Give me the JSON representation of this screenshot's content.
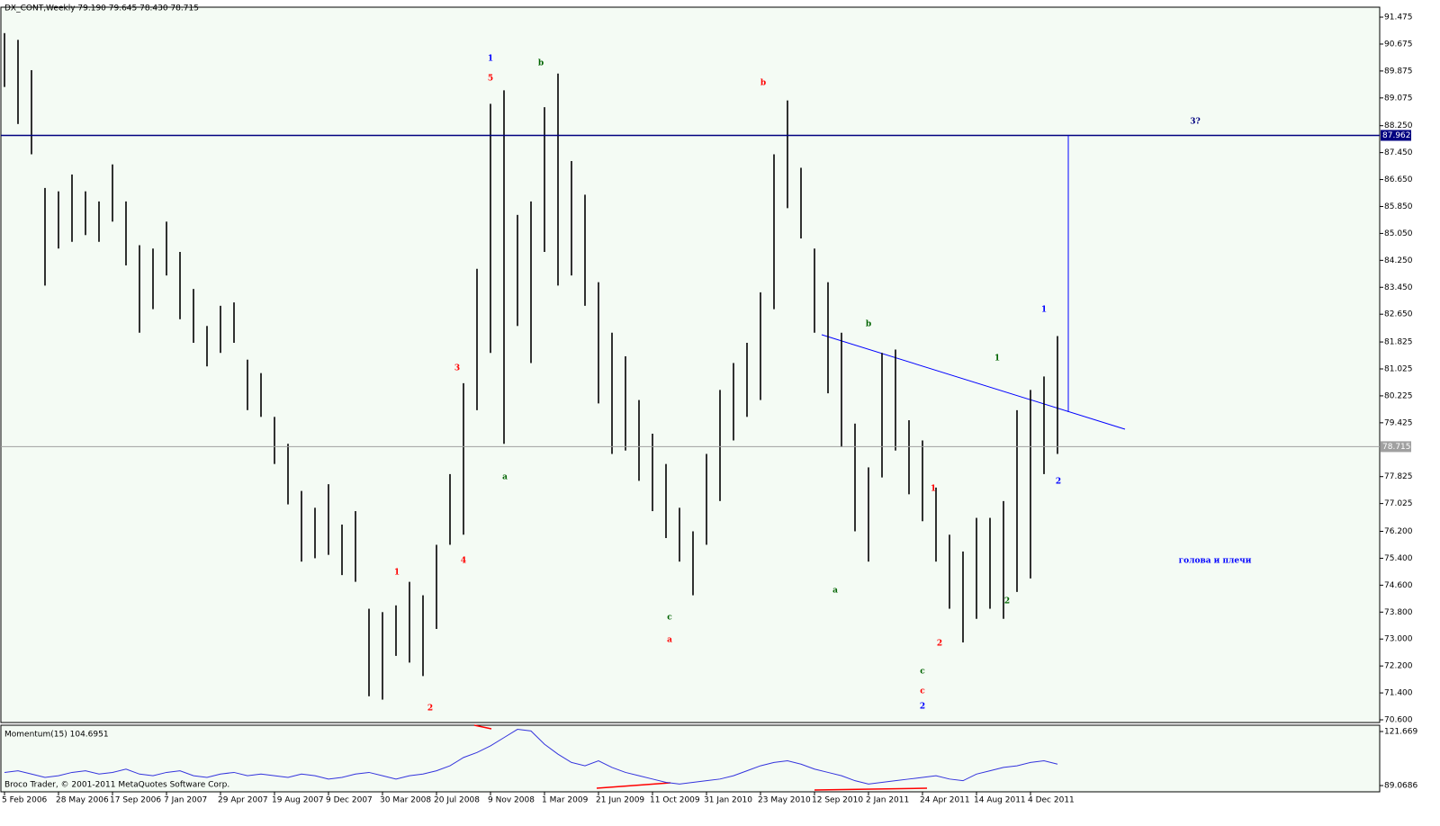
{
  "header": "DX_CONT,Weekly  79.190 79.645 78.430 78.715",
  "footer": "Broco Trader, © 2001-2011 MetaQuotes Software Corp.",
  "chart_data": {
    "type": "ohlc",
    "high": [
      91.0,
      90.8,
      89.9,
      86.4,
      86.3,
      86.8,
      86.3,
      86.0,
      87.1,
      86.0,
      84.7,
      84.6,
      85.4,
      84.5,
      83.4,
      82.3,
      82.9,
      83.0,
      81.3,
      80.9,
      79.6,
      78.8,
      77.4,
      76.9,
      77.6,
      76.4,
      76.8,
      73.9,
      73.8,
      74.0,
      74.7,
      74.3,
      75.8,
      77.9,
      80.6,
      84.0,
      88.9,
      89.3,
      85.6,
      86.0,
      88.8,
      89.8,
      87.2,
      86.2,
      83.6,
      82.1,
      81.4,
      80.1,
      79.1,
      78.2,
      76.9,
      76.2,
      78.5,
      80.4,
      81.2,
      81.8,
      83.3,
      87.4,
      89.0,
      87.0,
      84.6,
      83.6,
      82.1,
      79.4,
      78.1,
      81.5,
      81.6,
      79.5,
      78.9,
      77.5,
      76.1,
      75.6,
      76.6,
      76.6,
      77.1,
      79.8,
      80.4,
      80.8,
      82.0
    ],
    "low": [
      89.4,
      88.3,
      87.4,
      83.5,
      84.6,
      84.8,
      85.0,
      84.8,
      85.4,
      84.1,
      82.1,
      82.8,
      83.8,
      82.5,
      81.8,
      81.1,
      81.5,
      81.8,
      79.8,
      79.6,
      78.2,
      77.0,
      75.3,
      75.4,
      75.5,
      74.9,
      74.7,
      71.3,
      71.2,
      72.5,
      72.3,
      71.9,
      73.3,
      75.8,
      76.1,
      79.8,
      81.5,
      78.8,
      82.3,
      81.2,
      84.5,
      83.5,
      83.8,
      82.9,
      80.0,
      78.5,
      78.6,
      77.7,
      76.8,
      76.0,
      75.3,
      74.3,
      75.8,
      77.1,
      78.9,
      79.6,
      80.1,
      82.8,
      85.8,
      84.9,
      82.1,
      80.3,
      78.7,
      76.2,
      75.3,
      77.8,
      78.6,
      77.3,
      76.5,
      75.3,
      73.9,
      72.9,
      73.6,
      73.9,
      73.6,
      74.4,
      74.8,
      77.9,
      78.5
    ],
    "color": "#000000",
    "x_labels": [
      "5 Feb 2006",
      "28 May 2006",
      "17 Sep 2006",
      "7 Jan 2007",
      "29 Apr 2007",
      "19 Aug 2007",
      "9 Dec 2007",
      "30 Mar 2008",
      "20 Jul 2008",
      "9 Nov 2008",
      "1 Mar 2009",
      "21 Jun 2009",
      "11 Oct 2009",
      "31 Jan 2010",
      "23 May 2010",
      "12 Sep 2010",
      "2 Jan 2011",
      "24 Apr 2011",
      "14 Aug 2011",
      "4 Dec 2011"
    ],
    "ylim": [
      70.52,
      91.77
    ],
    "yticks": [
      91.475,
      90.675,
      89.875,
      89.075,
      {
        "value": 88.25,
        "label": "88.250"
      },
      {
        "value": 87.45,
        "label": "87.450"
      },
      {
        "value": 86.65,
        "label": "86.650"
      },
      {
        "value": 85.85,
        "label": "85.850"
      },
      {
        "value": 85.05,
        "label": "85.050"
      },
      {
        "value": 84.25,
        "label": "84.250"
      },
      {
        "value": 83.45,
        "label": "83.450"
      },
      {
        "value": 82.65,
        "label": "82.650"
      },
      81.825,
      81.025,
      80.225,
      79.425,
      77.825,
      77.025,
      {
        "value": 76.2,
        "label": "76.200"
      },
      {
        "value": 75.4,
        "label": "75.400"
      },
      {
        "value": 74.6,
        "label": "74.600"
      },
      {
        "value": 73.8,
        "label": "73.800"
      },
      {
        "value": 73,
        "label": "73.000"
      },
      {
        "value": 72.2,
        "label": "72.200"
      },
      {
        "value": 71.4,
        "label": "71.400"
      },
      {
        "value": 70.6,
        "label": "70.600"
      }
    ],
    "hlines": [
      {
        "value": 87.962,
        "color": "#000080"
      },
      {
        "value": 78.715,
        "color": "#a0a0a0"
      }
    ],
    "annotations": [
      {
        "text": "1",
        "color": "#0000ff"
      },
      {
        "text": "5",
        "color": "#ff0000"
      },
      {
        "text": "b",
        "color": "#006400"
      },
      {
        "text": "b",
        "color": "#ff0000"
      },
      {
        "text": "3?",
        "color": "#000080"
      },
      {
        "text": "3",
        "color": "#ff0000"
      },
      {
        "text": "a",
        "color": "#006400"
      },
      {
        "text": "1",
        "color": "#ff0000"
      },
      {
        "text": "4",
        "color": "#ff0000"
      },
      {
        "text": "2",
        "color": "#ff0000"
      },
      {
        "text": "c",
        "color": "#006400"
      },
      {
        "text": "a",
        "color": "#ff0000"
      },
      {
        "text": "b",
        "color": "#006400"
      },
      {
        "text": "a",
        "color": "#006400"
      },
      {
        "text": "1",
        "color": "#ff0000"
      },
      {
        "text": "2",
        "color": "#ff0000"
      },
      {
        "text": "c",
        "color": "#006400"
      },
      {
        "text": "c",
        "color": "#ff0000"
      },
      {
        "text": "2",
        "color": "#0000ff"
      },
      {
        "text": "1",
        "color": "#006400"
      },
      {
        "text": "2",
        "color": "#006400"
      },
      {
        "text": "1",
        "color": "#0000ff"
      },
      {
        "text": "2",
        "color": "#0000ff"
      },
      {
        "text": "голова и плечи",
        "color": "#0000ff"
      }
    ],
    "momentum": {
      "title": "Momentum(15) 104.6951",
      "color": "#3333dd",
      "values": [
        97,
        98,
        96,
        94,
        95,
        97,
        98,
        96,
        97,
        99,
        96,
        95,
        97,
        98,
        95,
        94,
        96,
        97,
        95,
        96,
        95,
        94,
        96,
        95,
        93,
        94,
        96,
        97,
        95,
        93,
        95,
        96,
        98,
        101,
        106,
        109,
        113,
        118,
        123,
        122,
        114,
        108,
        103,
        101,
        104,
        100,
        97,
        95,
        93,
        91,
        90,
        91,
        92,
        93,
        95,
        98,
        101,
        103,
        104,
        102,
        99,
        97,
        95,
        92,
        90,
        91,
        92,
        93,
        94,
        95,
        93,
        92,
        96,
        98,
        100,
        101,
        103,
        104,
        102
      ],
      "ylim": [
        85.3,
        125.47
      ],
      "yticks": [
        121.669,
        89.0686
      ]
    }
  }
}
